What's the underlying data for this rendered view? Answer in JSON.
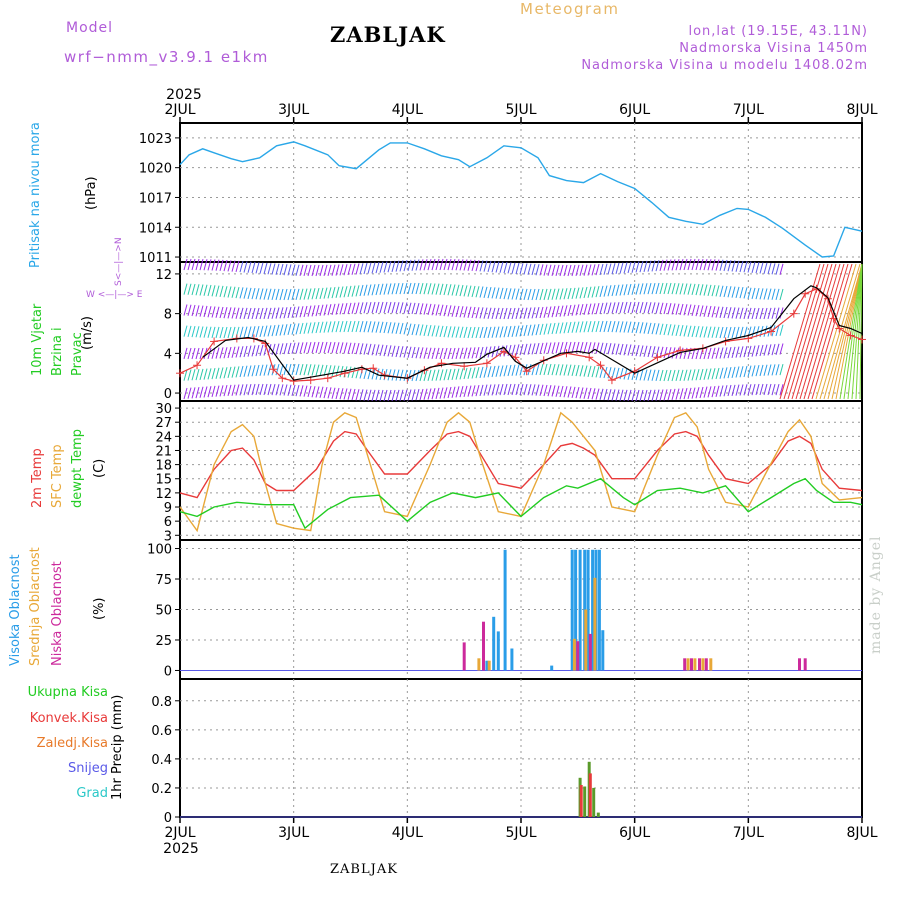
{
  "header": {
    "model_label": "Model",
    "model_name": "wrf−nmm_v3.9.1  e1km",
    "meteogram_label": "Meteogram",
    "station": "ZABLJAK",
    "lonlat": "lon,lat (19.15E, 43.11N)",
    "altitude": "Nadmorska Visina 1450m",
    "model_altitude": "Nadmorska Visina u modelu 1408.02m"
  },
  "footer": {
    "station": "ZABLJAK",
    "credit": "made by Angel"
  },
  "time_axis": {
    "year": "2025",
    "day_labels": [
      "2JUL",
      "3JUL",
      "4JUL",
      "5JUL",
      "6JUL",
      "7JUL",
      "8JUL"
    ]
  },
  "wind_rose": {
    "n": "N",
    "s": "S",
    "w": "W",
    "e": "E"
  },
  "colors": {
    "pressure": "#2aa7e8",
    "temp2m": "#e83a3a",
    "sfc_temp": "#e8a838",
    "dewpt": "#22cc22",
    "high_cloud": "#2a9de8",
    "mid_cloud": "#e8a838",
    "low_cloud": "#cc2a9c",
    "precip_total": "#5a9a2a",
    "precip_conv": "#e83a3a",
    "snow": "#5a5ae8",
    "hail": "#2ac8c8"
  },
  "chart_data": [
    {
      "type": "line",
      "panel": "pressure",
      "y_title": "Pritisak na nivou mora",
      "unit": "(hPa)",
      "yticks": [
        "1023",
        "1020",
        "1017",
        "1014",
        "1011"
      ],
      "ylim": [
        1010.5,
        1024.5
      ],
      "xlim_days": [
        0,
        6
      ],
      "grid": true,
      "series": [
        {
          "color": "#2aa7e8",
          "x": [
            0,
            0.08,
            0.2,
            0.3,
            0.45,
            0.55,
            0.7,
            0.85,
            1.0,
            1.1,
            1.3,
            1.4,
            1.55,
            1.75,
            1.85,
            2.0,
            2.15,
            2.3,
            2.45,
            2.55,
            2.7,
            2.85,
            3.0,
            3.15,
            3.25,
            3.4,
            3.55,
            3.7,
            3.85,
            4.0,
            4.15,
            4.3,
            4.45,
            4.6,
            4.75,
            4.9,
            5.0,
            5.15,
            5.3,
            5.5,
            5.65,
            5.75,
            5.85,
            6.0
          ],
          "y": [
            1020.3,
            1021.3,
            1021.9,
            1021.5,
            1020.9,
            1020.6,
            1021.0,
            1022.2,
            1022.6,
            1022.2,
            1021.3,
            1020.2,
            1019.9,
            1021.8,
            1022.5,
            1022.5,
            1021.9,
            1021.2,
            1020.8,
            1020.1,
            1021.0,
            1022.2,
            1022.0,
            1021.0,
            1019.2,
            1018.7,
            1018.5,
            1019.4,
            1018.6,
            1017.9,
            1016.5,
            1015.0,
            1014.6,
            1014.3,
            1015.2,
            1015.9,
            1015.8,
            1015.0,
            1013.9,
            1012.2,
            1011.0,
            1011.1,
            1014.0,
            1013.6
          ]
        }
      ]
    },
    {
      "type": "line",
      "panel": "wind",
      "y_title": "10m Vjetar Brzina i Pravac",
      "unit": "(m/s)",
      "yticks": [
        "12",
        "8",
        "4",
        "0"
      ],
      "ylim": [
        -0.8,
        13.2
      ],
      "grid": true,
      "series": [
        {
          "color": "#e83a3a",
          "x": [
            0,
            0.15,
            0.3,
            0.5,
            0.65,
            0.75,
            0.82,
            0.9,
            1.0,
            1.15,
            1.3,
            1.45,
            1.6,
            1.7,
            1.8,
            2.0,
            2.15,
            2.3,
            2.5,
            2.7,
            2.85,
            2.95,
            3.05,
            3.2,
            3.4,
            3.6,
            3.7,
            3.8,
            4.0,
            4.2,
            4.4,
            4.6,
            4.8,
            5.0,
            5.2,
            5.4,
            5.5,
            5.6,
            5.7,
            5.75,
            5.8,
            5.9,
            6.0
          ],
          "y": [
            2.0,
            2.8,
            5.2,
            5.5,
            5.5,
            5.0,
            2.4,
            1.5,
            1.2,
            1.3,
            1.5,
            2.0,
            2.4,
            2.5,
            1.8,
            1.5,
            2.3,
            3.0,
            2.7,
            3.0,
            4.2,
            3.6,
            2.2,
            3.3,
            4.0,
            3.6,
            2.8,
            1.3,
            2.2,
            3.6,
            4.3,
            4.5,
            5.2,
            5.5,
            6.2,
            8.0,
            10.0,
            10.5,
            9.5,
            7.5,
            6.5,
            5.8,
            5.4
          ]
        },
        {
          "color": "#000000",
          "x": [
            0.2,
            0.4,
            0.6,
            0.75,
            1.0,
            1.25,
            1.45,
            1.6,
            1.75,
            2.0,
            2.2,
            2.4,
            2.6,
            2.7,
            2.85,
            2.95,
            3.05,
            3.35,
            3.5,
            3.6,
            3.65,
            4.0,
            4.4,
            4.6,
            4.8,
            5.0,
            5.2,
            5.4,
            5.55,
            5.6,
            5.7,
            5.8,
            5.9,
            6.0
          ],
          "y": [
            3.6,
            5.3,
            5.6,
            5.2,
            1.3,
            1.8,
            2.2,
            2.6,
            1.8,
            1.5,
            2.6,
            3.0,
            3.1,
            3.9,
            4.6,
            3.2,
            2.5,
            4.0,
            4.2,
            4.0,
            4.4,
            2.0,
            4.1,
            4.5,
            5.3,
            5.8,
            6.6,
            9.5,
            10.8,
            10.6,
            9.6,
            6.8,
            6.5,
            6.0
          ]
        }
      ]
    },
    {
      "type": "line",
      "panel": "temperature",
      "y_title_lines": [
        "2m Temp",
        "SFC Temp",
        "dewpt Temp"
      ],
      "unit": "(C)",
      "yticks": [
        "30",
        "27",
        "24",
        "21",
        "18",
        "15",
        "12",
        "9",
        "6",
        "3"
      ],
      "ylim": [
        2,
        31.5
      ],
      "grid": true,
      "series": [
        {
          "name": "2m Temp",
          "color": "#e83a3a",
          "x": [
            0,
            0.15,
            0.3,
            0.45,
            0.55,
            0.65,
            0.75,
            0.85,
            1.0,
            1.2,
            1.35,
            1.45,
            1.55,
            1.65,
            1.8,
            2.0,
            2.2,
            2.35,
            2.45,
            2.55,
            2.65,
            2.8,
            3.0,
            3.2,
            3.35,
            3.45,
            3.55,
            3.65,
            3.8,
            4.0,
            4.2,
            4.35,
            4.45,
            4.55,
            4.65,
            4.8,
            5.0,
            5.2,
            5.35,
            5.45,
            5.55,
            5.65,
            5.8,
            6.0
          ],
          "y": [
            12,
            11,
            17,
            21,
            21.5,
            19,
            14,
            12.5,
            12.5,
            17,
            23,
            25,
            24.5,
            21,
            16,
            16,
            21,
            24.5,
            25,
            24,
            20,
            14,
            13,
            18,
            22,
            22.5,
            21.5,
            20,
            15,
            15,
            21,
            24.5,
            25,
            24,
            20,
            15,
            14,
            18,
            23,
            24,
            22.5,
            17,
            13,
            12.5
          ]
        },
        {
          "name": "SFC Temp",
          "color": "#e8a838",
          "x": [
            0,
            0.15,
            0.3,
            0.45,
            0.55,
            0.65,
            0.75,
            0.85,
            1.0,
            1.15,
            1.25,
            1.35,
            1.45,
            1.55,
            1.65,
            1.8,
            2.0,
            2.2,
            2.35,
            2.45,
            2.55,
            2.65,
            2.8,
            3.0,
            3.2,
            3.35,
            3.45,
            3.55,
            3.65,
            3.8,
            4.0,
            4.2,
            4.35,
            4.45,
            4.55,
            4.65,
            4.8,
            5.0,
            5.15,
            5.35,
            5.45,
            5.55,
            5.65,
            5.8,
            6.0
          ],
          "y": [
            9,
            4,
            18,
            25,
            26.5,
            24,
            14,
            5.5,
            4.5,
            4,
            18,
            27,
            29,
            28,
            20,
            8,
            7,
            18,
            27,
            29,
            27,
            19,
            8,
            7,
            18,
            29,
            27,
            24,
            21,
            9,
            8,
            20,
            28,
            29,
            26,
            17,
            10,
            9,
            16,
            25,
            27.5,
            24,
            14,
            10.5,
            11
          ]
        },
        {
          "name": "dewpt Temp",
          "color": "#22cc22",
          "x": [
            0,
            0.15,
            0.3,
            0.5,
            0.75,
            1.0,
            1.1,
            1.3,
            1.5,
            1.75,
            2.0,
            2.2,
            2.4,
            2.6,
            2.8,
            3.0,
            3.2,
            3.4,
            3.5,
            3.7,
            3.9,
            4.0,
            4.2,
            4.4,
            4.6,
            4.8,
            5.0,
            5.2,
            5.4,
            5.5,
            5.6,
            5.75,
            5.9,
            6.0
          ],
          "y": [
            8,
            7,
            9,
            10,
            9.5,
            9.5,
            4.5,
            8.5,
            11,
            11.5,
            6,
            10,
            12,
            11,
            12,
            7,
            11,
            13.5,
            13,
            15,
            11,
            9.5,
            12.5,
            13,
            12,
            13.5,
            8,
            11,
            14,
            15,
            12.5,
            10,
            10,
            9.5
          ]
        }
      ]
    },
    {
      "type": "bar",
      "panel": "cloud",
      "y_title_lines": [
        "Visoka Oblacnost",
        "Srednja Oblacnost",
        "Niska Oblacnost"
      ],
      "unit": "(%)",
      "yticks": [
        "100",
        "75",
        "50",
        "25",
        "0"
      ],
      "ylim": [
        -7,
        107
      ],
      "grid": true,
      "series": [
        {
          "name": "Visoka Oblacnost",
          "color": "#2a9de8",
          "x": [
            2.7,
            2.76,
            2.8,
            2.86,
            2.92,
            3.27,
            3.45,
            3.48,
            3.52,
            3.56,
            3.59,
            3.63,
            3.66,
            3.69,
            3.72
          ],
          "y": [
            8,
            44,
            32,
            99,
            18,
            4,
            99,
            99,
            99,
            99,
            99,
            99,
            99,
            99,
            33
          ]
        },
        {
          "name": "Srednja Oblacnost",
          "color": "#e8a838",
          "x": [
            2.63,
            2.72,
            3.47,
            3.57,
            3.65,
            4.47,
            4.53,
            4.6,
            4.67
          ],
          "y": [
            10,
            8,
            26,
            50,
            76,
            10,
            10,
            10,
            10
          ]
        },
        {
          "name": "Niska Oblacnost",
          "color": "#cc2a9c",
          "x": [
            2.5,
            2.67,
            3.5,
            3.61,
            4.44,
            4.5,
            4.57,
            4.63,
            5.45,
            5.5
          ],
          "y": [
            23,
            40,
            24,
            30,
            10,
            10,
            10,
            10,
            10,
            10
          ]
        }
      ]
    },
    {
      "type": "bar",
      "panel": "precipitation",
      "y_title": "1hr Precip (mm)",
      "legend": [
        "Ukupna Kisa",
        "Konvek.Kisa",
        "Zaledj.Kisa",
        "Snijeg",
        "Grad"
      ],
      "yticks": [
        "0.8",
        "0.6",
        "0.4",
        "0.2",
        "0"
      ],
      "ylim": [
        0,
        0.95
      ],
      "grid": true,
      "series": [
        {
          "name": "Ukupna Kisa",
          "color": "#5a9a2a",
          "x": [
            3.52,
            3.56,
            3.6,
            3.64,
            3.68
          ],
          "y": [
            0.27,
            0.21,
            0.38,
            0.2,
            0.03
          ]
        },
        {
          "name": "Konvek.Kisa",
          "color": "#e83a3a",
          "x": [
            3.53,
            3.61
          ],
          "y": [
            0.22,
            0.3
          ]
        }
      ]
    }
  ]
}
